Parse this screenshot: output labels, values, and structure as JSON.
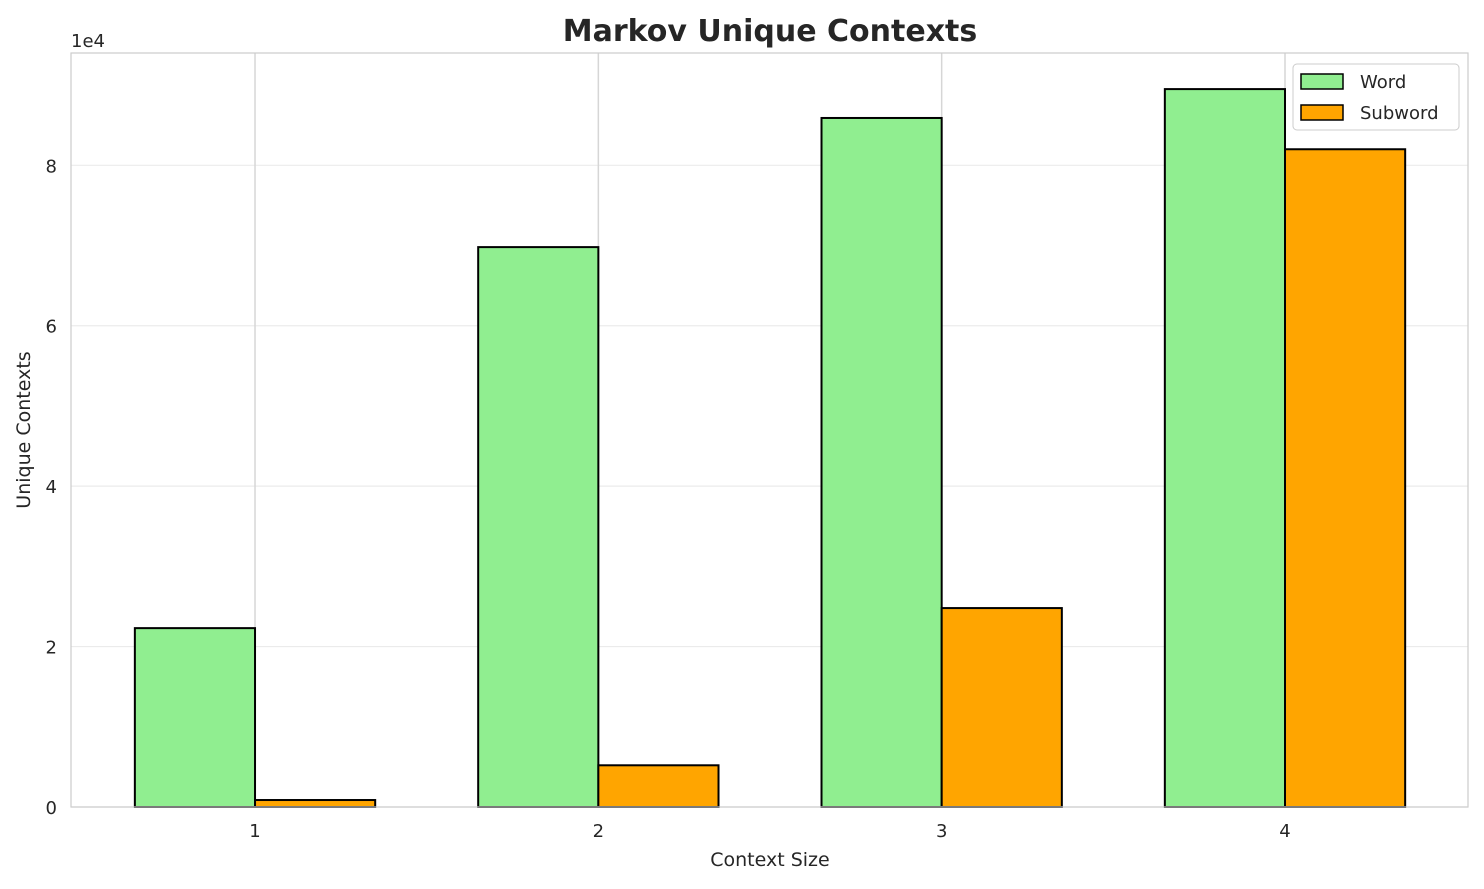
{
  "chart_data": {
    "type": "bar",
    "title": "Markov Unique Contexts",
    "xlabel": "Context Size",
    "ylabel": "Unique Contexts",
    "y_offset_label": "1e4",
    "categories": [
      "1",
      "2",
      "3",
      "4"
    ],
    "series": [
      {
        "name": "Word",
        "color": "#90ee90",
        "values": [
          22300,
          69800,
          85900,
          89500
        ]
      },
      {
        "name": "Subword",
        "color": "#ffa500",
        "values": [
          870,
          5200,
          24800,
          82000
        ]
      }
    ],
    "ylim": [
      0,
      94000
    ],
    "yticks": [
      0,
      20000,
      40000,
      60000,
      80000
    ],
    "ytick_labels": [
      "0",
      "2",
      "4",
      "6",
      "8"
    ],
    "grid": true,
    "legend": "top-right"
  }
}
